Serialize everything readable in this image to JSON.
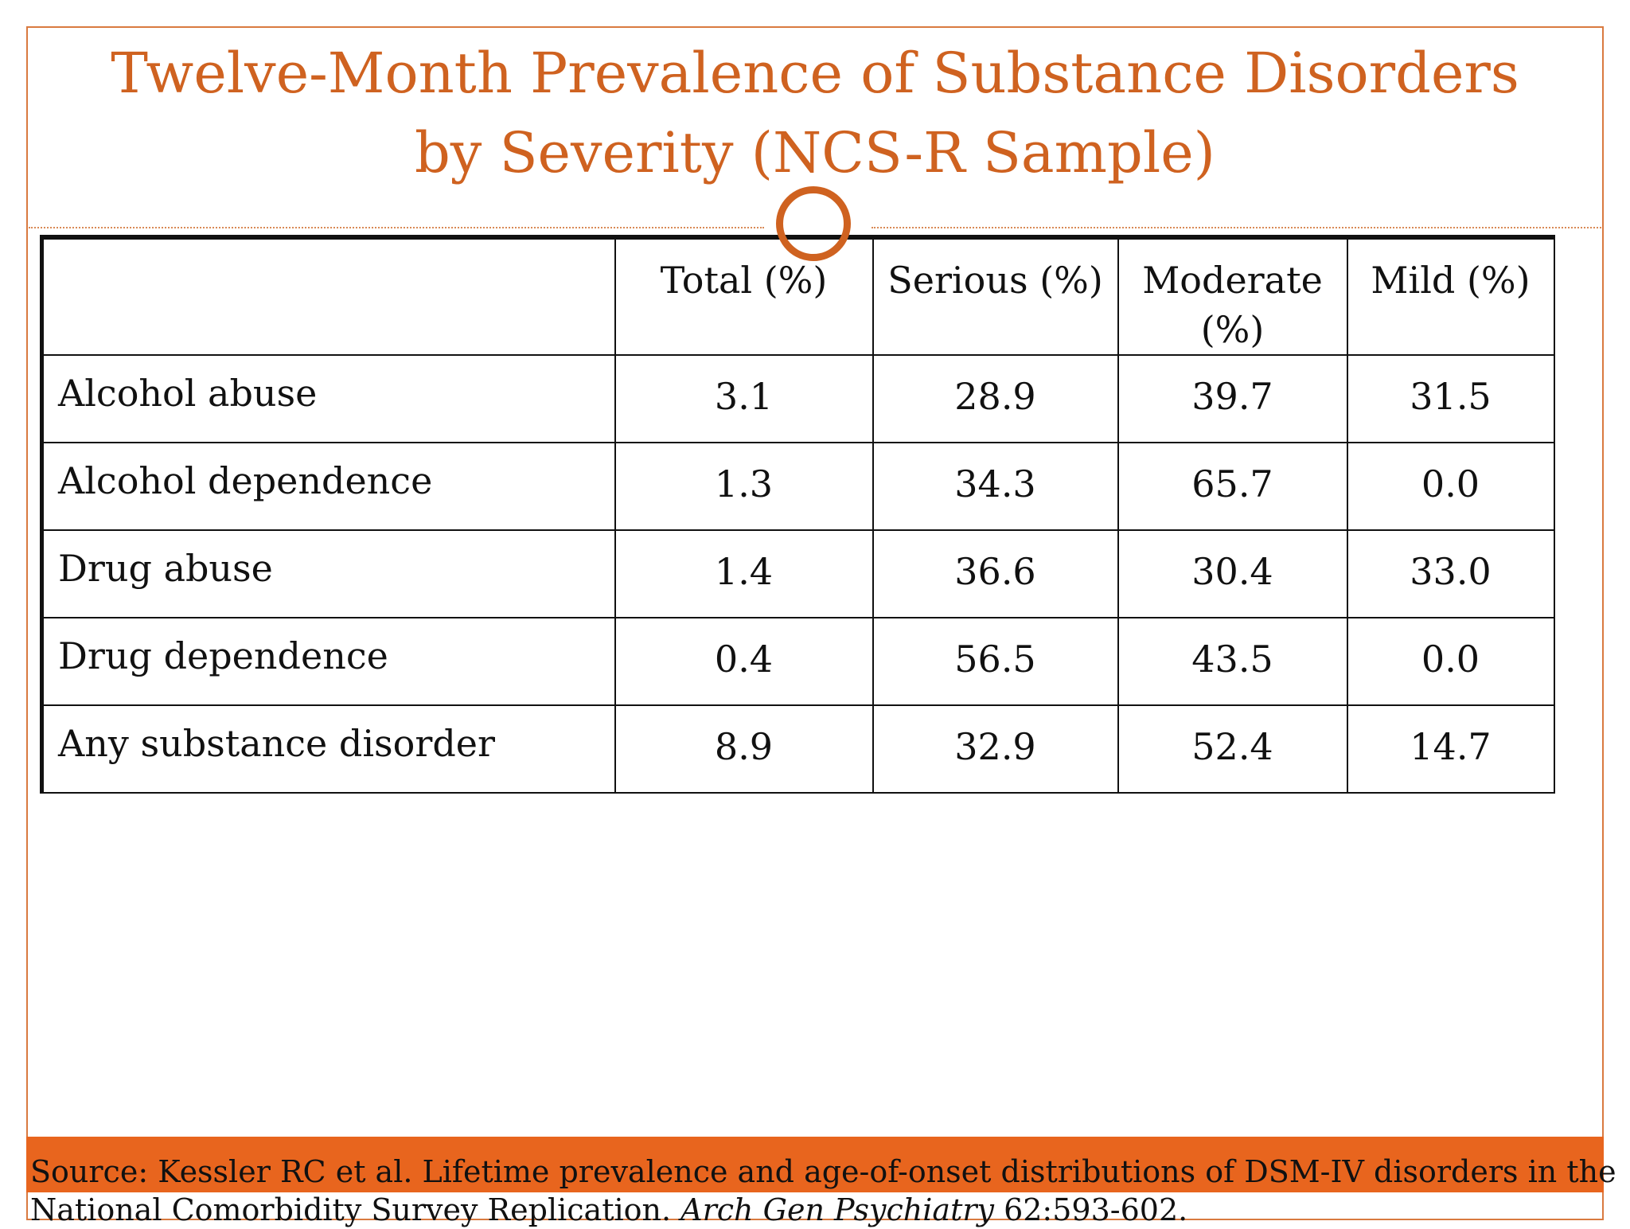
{
  "slide": {
    "title_line1": "Twelve-Month Prevalence of Substance Disorders",
    "title_line2": "by Severity (NCS-R Sample)",
    "accent_color": "#cf6220",
    "source_bar_color": "#e8651e"
  },
  "table": {
    "headers": [
      "",
      "Total (%)",
      "Serious (%)",
      "Moderate (%)",
      "Mild (%)"
    ],
    "rows": [
      {
        "label": "Alcohol abuse",
        "total": "3.1",
        "serious": "28.9",
        "moderate": "39.7",
        "mild": "31.5"
      },
      {
        "label": "Alcohol dependence",
        "total": "1.3",
        "serious": "34.3",
        "moderate": "65.7",
        "mild": "0.0"
      },
      {
        "label": "Drug abuse",
        "total": "1.4",
        "serious": "36.6",
        "moderate": "30.4",
        "mild": "33.0"
      },
      {
        "label": "Drug dependence",
        "total": "0.4",
        "serious": "56.5",
        "moderate": "43.5",
        "mild": "0.0"
      },
      {
        "label": "Any substance disorder",
        "total": "8.9",
        "serious": "32.9",
        "moderate": "52.4",
        "mild": "14.7"
      }
    ]
  },
  "source": {
    "line1": "Source: Kessler RC et al. Lifetime prevalence and age-of-onset distributions of DSM-IV disorders in the",
    "line2_prefix": "National Comorbidity Survey Replication. ",
    "journal": "Arch Gen Psychiatry",
    "line2_suffix": " 62:593-602."
  }
}
